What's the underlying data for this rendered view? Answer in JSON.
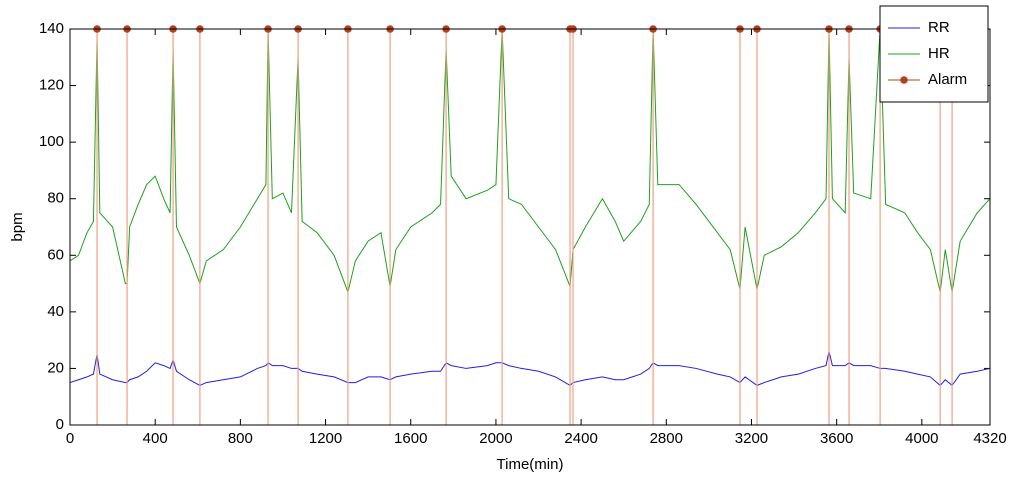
{
  "chart_data": {
    "type": "line",
    "x_label": "Time(min)",
    "y_label": "bpm",
    "xlim": [
      0,
      4320
    ],
    "xticks": [
      0,
      400,
      800,
      1200,
      1600,
      2000,
      2400,
      2800,
      3200,
      3600,
      4000,
      4320
    ],
    "ylim": [
      0,
      140
    ],
    "yticks": [
      0,
      20,
      40,
      60,
      80,
      100,
      120,
      140
    ],
    "grid": false,
    "legend": "upper right",
    "x": [
      0,
      40,
      80,
      110,
      127,
      140,
      200,
      260,
      268,
      280,
      320,
      360,
      400,
      440,
      470,
      484,
      500,
      560,
      610,
      640,
      720,
      800,
      880,
      920,
      930,
      950,
      1000,
      1040,
      1071,
      1090,
      1160,
      1240,
      1305,
      1340,
      1400,
      1460,
      1503,
      1530,
      1600,
      1700,
      1740,
      1766,
      1790,
      1860,
      1960,
      2000,
      2029,
      2060,
      2120,
      2200,
      2280,
      2348,
      2362,
      2420,
      2500,
      2560,
      2600,
      2680,
      2720,
      2738,
      2760,
      2860,
      2940,
      3040,
      3100,
      3146,
      3170,
      3226,
      3260,
      3340,
      3420,
      3500,
      3550,
      3564,
      3580,
      3640,
      3658,
      3680,
      3760,
      3804,
      3830,
      3920,
      3980,
      4040,
      4086,
      4110,
      4142,
      4180,
      4260,
      4320
    ],
    "series": [
      {
        "name": "RR",
        "color": "#2020e0",
        "values": [
          15,
          16,
          17,
          18,
          25,
          18,
          16,
          15,
          15,
          16,
          17,
          19,
          22,
          21,
          20,
          23,
          19,
          16,
          14,
          15,
          16,
          17,
          20,
          21,
          22,
          21,
          21,
          20,
          20,
          19,
          18,
          17,
          15,
          15,
          17,
          17,
          16,
          17,
          18,
          19,
          19,
          22,
          21,
          20,
          21,
          22,
          22,
          21,
          20,
          19,
          17,
          14,
          15,
          16,
          17,
          16,
          16,
          18,
          20,
          22,
          21,
          21,
          20,
          18,
          17,
          15,
          17,
          14,
          15,
          17,
          18,
          20,
          21,
          26,
          21,
          21,
          22,
          21,
          21,
          20,
          20,
          19,
          18,
          17,
          14,
          16,
          14,
          18,
          19,
          20
        ]
      },
      {
        "name": "HR",
        "color": "#20a020",
        "values": [
          58,
          60,
          68,
          72,
          137,
          75,
          70,
          50,
          50,
          70,
          78,
          85,
          88,
          80,
          75,
          133,
          70,
          60,
          50,
          58,
          62,
          70,
          80,
          85,
          140,
          80,
          82,
          75,
          130,
          72,
          68,
          60,
          47,
          58,
          65,
          68,
          49,
          62,
          70,
          75,
          78,
          133,
          88,
          80,
          83,
          85,
          140,
          80,
          78,
          70,
          62,
          49,
          62,
          70,
          80,
          72,
          65,
          72,
          78,
          140,
          85,
          85,
          78,
          68,
          62,
          48,
          70,
          48,
          60,
          63,
          68,
          75,
          80,
          140,
          80,
          75,
          130,
          82,
          80,
          140,
          78,
          75,
          68,
          62,
          47,
          62,
          47,
          65,
          75,
          80
        ]
      },
      {
        "name": "Alarm",
        "style": "stem",
        "color": "#b5401f",
        "stem_color": "#f0a080",
        "x": [
          127,
          268,
          484,
          610,
          930,
          1071,
          1305,
          1503,
          1766,
          2029,
          2348,
          2362,
          2738,
          3146,
          3226,
          3564,
          3658,
          3804,
          4086,
          4142
        ],
        "values": [
          140,
          140,
          140,
          140,
          140,
          140,
          140,
          140,
          140,
          140,
          140,
          140,
          140,
          140,
          140,
          140,
          140,
          140,
          140,
          140
        ]
      }
    ]
  }
}
